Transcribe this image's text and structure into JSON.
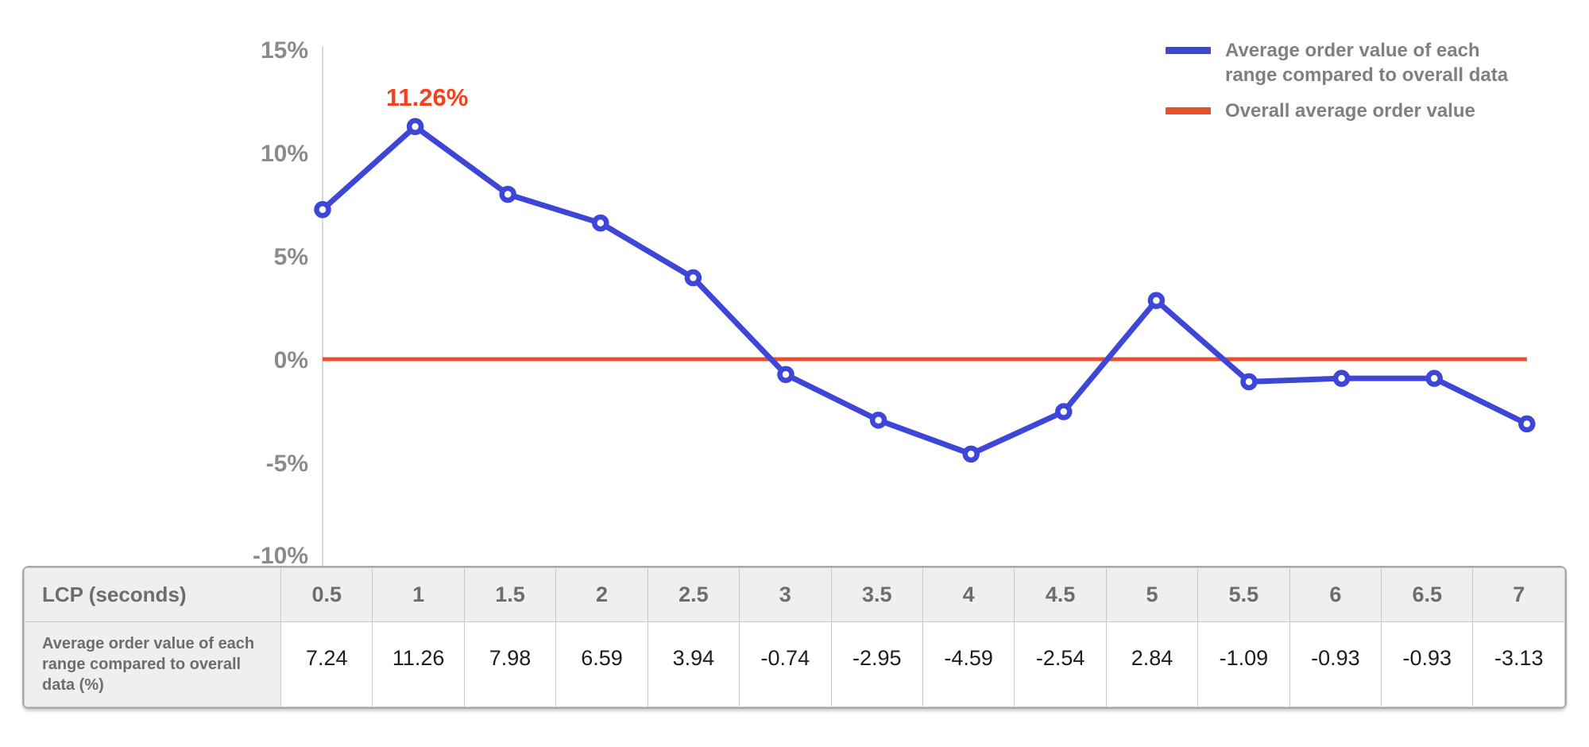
{
  "chart_data": {
    "type": "line",
    "title": "",
    "xlabel": "LCP (seconds)",
    "ylabel": "",
    "x_categories": [
      "0.5",
      "1",
      "1.5",
      "2",
      "2.5",
      "3",
      "3.5",
      "4",
      "4.5",
      "5",
      "5.5",
      "6",
      "6.5",
      "7"
    ],
    "ylim": [
      -10,
      15
    ],
    "yticks": [
      {
        "value": 15,
        "label": "15%"
      },
      {
        "value": 10,
        "label": "10%"
      },
      {
        "value": 5,
        "label": "5%"
      },
      {
        "value": 0,
        "label": "0%"
      },
      {
        "value": -5,
        "label": "-5%"
      },
      {
        "value": -10,
        "label": "-10%"
      }
    ],
    "grid": false,
    "legend_position": "top-right",
    "series": [
      {
        "name": "Average order value of each range compared to overall data",
        "type": "line",
        "marker": "open-circle",
        "color": "#3e46d7",
        "values": [
          7.24,
          11.26,
          7.98,
          6.59,
          3.94,
          -0.74,
          -2.95,
          -4.59,
          -2.54,
          2.84,
          -1.09,
          -0.93,
          -0.93,
          -3.13
        ]
      },
      {
        "name": "Overall average order value",
        "type": "horizontal-line",
        "color": "#e8502c",
        "value": 0
      }
    ],
    "annotation": {
      "text": "11.26%",
      "x_category": "1",
      "value": 11.26,
      "color": "#f2411d"
    }
  },
  "legend": {
    "items": [
      {
        "lines": [
          "Average order value of each",
          "range compared to overall data"
        ]
      },
      {
        "lines": [
          "Overall average order value"
        ]
      }
    ]
  },
  "table": {
    "header_label": "LCP (seconds)",
    "row_label": "Average order value of each range compared to overall data (%)",
    "lcp_values": [
      "0.5",
      "1",
      "1.5",
      "2",
      "2.5",
      "3",
      "3.5",
      "4",
      "4.5",
      "5",
      "5.5",
      "6",
      "6.5",
      "7"
    ],
    "aov_values": [
      "7.24",
      "11.26",
      "7.98",
      "6.59",
      "3.94",
      "-0.74",
      "-2.95",
      "-4.59",
      "-2.54",
      "2.84",
      "-1.09",
      "-0.93",
      "-0.93",
      "-3.13"
    ]
  },
  "colors": {
    "series_blue": "#3e46d7",
    "series_red": "#e8502c",
    "annotation_red": "#f2411d",
    "tick_label_gray": "#8b8b8b",
    "legend_text_gray": "#808080",
    "axis_line_gray": "#d8d8d8",
    "table_header_bg": "#f0efef",
    "table_border": "#c9c9c9"
  }
}
